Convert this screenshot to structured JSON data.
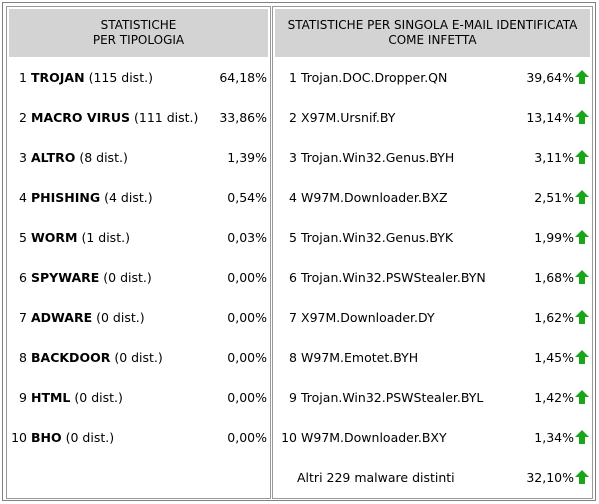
{
  "left": {
    "header_line1": "STATISTICHE",
    "header_line2": "PER TIPOLOGIA",
    "rows": [
      {
        "num": "1",
        "name": "TROJAN",
        "dist": "(115 dist.)",
        "pct": "64,18%"
      },
      {
        "num": "2",
        "name": "MACRO VIRUS",
        "dist": "(111 dist.)",
        "pct": "33,86%"
      },
      {
        "num": "3",
        "name": "ALTRO",
        "dist": "(8 dist.)",
        "pct": "1,39%"
      },
      {
        "num": "4",
        "name": "PHISHING",
        "dist": "(4 dist.)",
        "pct": "0,54%"
      },
      {
        "num": "5",
        "name": "WORM",
        "dist": "(1 dist.)",
        "pct": "0,03%"
      },
      {
        "num": "6",
        "name": "SPYWARE",
        "dist": "(0 dist.)",
        "pct": "0,00%"
      },
      {
        "num": "7",
        "name": "ADWARE",
        "dist": "(0 dist.)",
        "pct": "0,00%"
      },
      {
        "num": "8",
        "name": "BACKDOOR",
        "dist": "(0 dist.)",
        "pct": "0,00%"
      },
      {
        "num": "9",
        "name": "HTML",
        "dist": "(0 dist.)",
        "pct": "0,00%"
      },
      {
        "num": "10",
        "name": "BHO",
        "dist": "(0 dist.)",
        "pct": "0,00%"
      }
    ]
  },
  "right": {
    "header_line1": "STATISTICHE PER SINGOLA E-MAIL IDENTIFICATA",
    "header_line2": "COME INFETTA",
    "arrow_icon": "green-up-arrow-icon",
    "arrow_color": "#1aa51a",
    "rows": [
      {
        "num": "1",
        "name": "Trojan.DOC.Dropper.QN",
        "pct": "39,64%"
      },
      {
        "num": "2",
        "name": "X97M.Ursnif.BY",
        "pct": "13,14%"
      },
      {
        "num": "3",
        "name": "Trojan.Win32.Genus.BYH",
        "pct": "3,11%"
      },
      {
        "num": "4",
        "name": "W97M.Downloader.BXZ",
        "pct": "2,51%"
      },
      {
        "num": "5",
        "name": "Trojan.Win32.Genus.BYK",
        "pct": "1,99%"
      },
      {
        "num": "6",
        "name": "Trojan.Win32.PSWStealer.BYN",
        "pct": "1,68%"
      },
      {
        "num": "7",
        "name": "X97M.Downloader.DY",
        "pct": "1,62%"
      },
      {
        "num": "8",
        "name": "W97M.Emotet.BYH",
        "pct": "1,45%"
      },
      {
        "num": "9",
        "name": "Trojan.Win32.PSWStealer.BYL",
        "pct": "1,42%"
      },
      {
        "num": "10",
        "name": "W97M.Downloader.BXY",
        "pct": "1,34%"
      }
    ],
    "other": {
      "name": "Altri 229 malware distinti",
      "pct": "32,10%"
    }
  }
}
